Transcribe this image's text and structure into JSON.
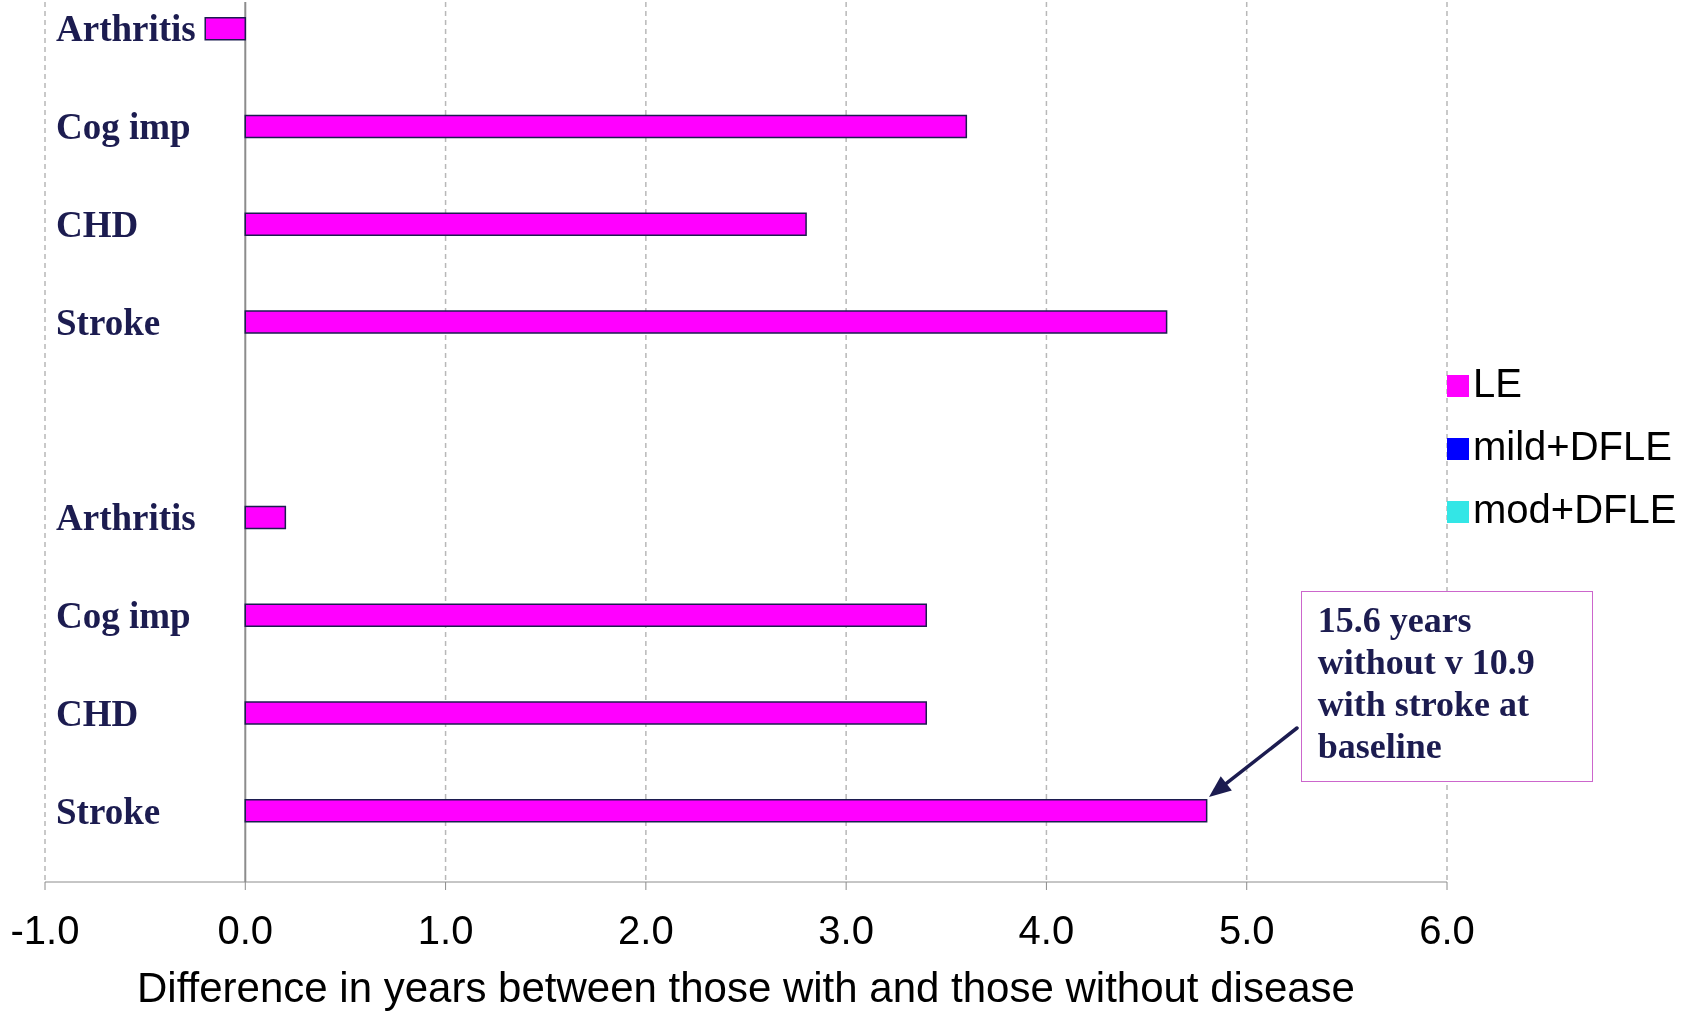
{
  "chart_data": {
    "type": "bar",
    "orientation": "horizontal",
    "xlabel": "Difference in years between those with and those without disease",
    "categories": [
      "Arthritis",
      "Cog imp",
      "CHD",
      "Stroke",
      null,
      "Arthritis",
      "Cog imp",
      "CHD",
      "Stroke"
    ],
    "series": [
      {
        "name": "LE",
        "color": "#ff00ff",
        "values": [
          -0.2,
          3.6,
          2.8,
          4.6,
          null,
          0.2,
          3.4,
          3.4,
          4.8
        ]
      },
      {
        "name": "mild+DFLE",
        "color": "#0000ff",
        "values": [
          null,
          null,
          null,
          null,
          null,
          null,
          null,
          null,
          null
        ]
      },
      {
        "name": "mod+DFLE",
        "color": "#33e6e6",
        "values": [
          null,
          null,
          null,
          null,
          null,
          null,
          null,
          null,
          null
        ]
      }
    ],
    "xlim": [
      -1,
      6
    ],
    "xticks": [
      {
        "value": -1,
        "label": "-1.0"
      },
      {
        "value": 0,
        "label": "0.0"
      },
      {
        "value": 1,
        "label": "1.0"
      },
      {
        "value": 2,
        "label": "2.0"
      },
      {
        "value": 3,
        "label": "3.0"
      },
      {
        "value": 4,
        "label": "4.0"
      },
      {
        "value": 5,
        "label": "5.0"
      },
      {
        "value": 6,
        "label": "6.0"
      }
    ],
    "grid": "x",
    "legend": "right",
    "annotations": [
      "15.6 years without v 10.9 with stroke at baseline"
    ]
  }
}
